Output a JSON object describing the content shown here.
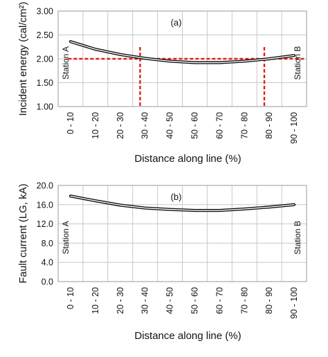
{
  "chart_data": [
    {
      "type": "line",
      "panel_label": "(a)",
      "categories": [
        "0 - 10",
        "10 - 20",
        "20 - 30",
        "30 - 40",
        "40 - 50",
        "50 - 60",
        "60 - 70",
        "70 - 80",
        "80 - 90",
        "90 - 100"
      ],
      "series": [
        {
          "values": [
            2.36,
            2.2,
            2.09,
            2.01,
            1.95,
            1.92,
            1.92,
            1.95,
            2.0,
            2.07
          ]
        }
      ],
      "threshold": {
        "y": 2.0,
        "x_crossings": [
          3.3,
          8.3
        ]
      },
      "xlabel": "Distance along line (%)",
      "ylabel": "Incident energy (cal/cm²)",
      "ylim": [
        1.0,
        3.0
      ],
      "yticks": [
        "1.00",
        "1.50",
        "2.00",
        "2.50",
        "3.00"
      ],
      "annotations": {
        "left": "Station A",
        "right": "Station B"
      }
    },
    {
      "type": "line",
      "panel_label": "(b)",
      "categories": [
        "0 - 10",
        "10 - 20",
        "20 - 30",
        "30 - 40",
        "40 - 50",
        "50 - 60",
        "60 - 70",
        "70 - 80",
        "80 - 90",
        "90 - 100"
      ],
      "series": [
        {
          "values": [
            17.8,
            16.8,
            15.9,
            15.3,
            15.0,
            14.8,
            14.8,
            15.1,
            15.5,
            16.0
          ]
        }
      ],
      "xlabel": "Distance along line (%)",
      "ylabel": "Fault current (LG, kA)",
      "ylim": [
        0,
        20
      ],
      "yticks": [
        "0.0",
        "4.0",
        "8.0",
        "12.0",
        "16.0",
        "20.0"
      ],
      "annotations": {
        "left": "Station A",
        "right": "Station B"
      }
    }
  ],
  "colors": {
    "curve": "#111111",
    "threshold": "#e0201b",
    "grid": "#c8c8c8"
  }
}
